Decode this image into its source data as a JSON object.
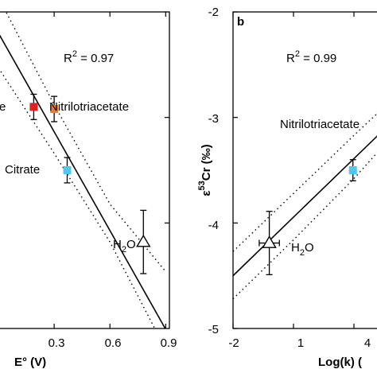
{
  "chart_data": [
    {
      "type": "scatter",
      "panel": "",
      "xlabel": "E° (V)",
      "ylabel": "",
      "xlim": [
        0,
        0.92
      ],
      "ylim": [
        -5,
        -2
      ],
      "xticks": [
        0.3,
        0.6,
        0.9
      ],
      "xtick_labels": [
        "0.3",
        "0.6",
        "0.9"
      ],
      "yticks": [
        -4,
        -3
      ],
      "r2_label": "R",
      "r2_sup": "2",
      "r2_value": " = 0.97",
      "points": [
        {
          "name": "Citrate",
          "label": "Citrate",
          "x": 0.37,
          "y": -3.5,
          "yerr": 0.12,
          "color": "#4fc8ee",
          "marker": "square"
        },
        {
          "name": "Nitrilotriacetate",
          "label": "Nitrilotriacetate",
          "x": 0.3,
          "y": -2.92,
          "yerr": 0.12,
          "color": "#ef7a2a",
          "marker": "square"
        },
        {
          "name": "",
          "label": "e",
          "x": 0.19,
          "y": -2.9,
          "yerr": 0.12,
          "color": "#e02020",
          "marker": "square"
        },
        {
          "name": "H2O",
          "label": "H",
          "label_sub": "2",
          "label_tail": "O",
          "x": 0.78,
          "y": -4.18,
          "yerr": 0.3,
          "color": "none",
          "marker": "triangle"
        }
      ],
      "fit": {
        "slope": -3.12,
        "intercept": -2.2
      },
      "ci_upper": [
        [
          0,
          -1.86
        ],
        [
          0.3,
          -2.88
        ],
        [
          0.6,
          -3.82
        ],
        [
          0.9,
          -4.46
        ]
      ],
      "ci_lower": [
        [
          0,
          -2.53
        ],
        [
          0.3,
          -3.34
        ],
        [
          0.6,
          -4.18
        ],
        [
          0.9,
          -5.2
        ]
      ]
    },
    {
      "type": "scatter",
      "panel": "b",
      "xlabel": "Log(k) (",
      "ylabel": "ε",
      "ylabel_sup": "53",
      "ylabel_tail": "Cr (‰)",
      "xlim": [
        -2,
        5.5
      ],
      "ylim": [
        -5,
        -2
      ],
      "xticks": [
        -2,
        1,
        4
      ],
      "xtick_labels": [
        "-2",
        "1",
        "4"
      ],
      "yticks": [
        -5,
        -4,
        -3,
        -2
      ],
      "ytick_labels": [
        "-5",
        "-4",
        "-3",
        "-2"
      ],
      "r2_label": "R",
      "r2_sup": "2",
      "r2_value": " = 0.99",
      "points": [
        {
          "name": "H2O",
          "label": "H",
          "label_sub": "2",
          "label_tail": "O",
          "x": -0.2,
          "y": -4.19,
          "xerr": 0.5,
          "yerr": 0.3,
          "color": "none",
          "marker": "triangle"
        },
        {
          "name": "Nitrilotriacetate",
          "label": "Nitrilotriacetate",
          "x": 3.95,
          "y": -3.5,
          "yerr": 0.1,
          "color": "#4fc8ee",
          "marker": "square"
        }
      ],
      "fit": {
        "slope": 0.185,
        "intercept": -4.13
      },
      "ci_upper": [
        [
          -2,
          -4.27
        ],
        [
          1,
          -3.72
        ],
        [
          4,
          -3.17
        ],
        [
          5.5,
          -2.9
        ]
      ],
      "ci_lower": [
        [
          -2,
          -4.72
        ],
        [
          1,
          -4.16
        ],
        [
          4,
          -3.58
        ],
        [
          5.5,
          -3.26
        ]
      ]
    }
  ]
}
